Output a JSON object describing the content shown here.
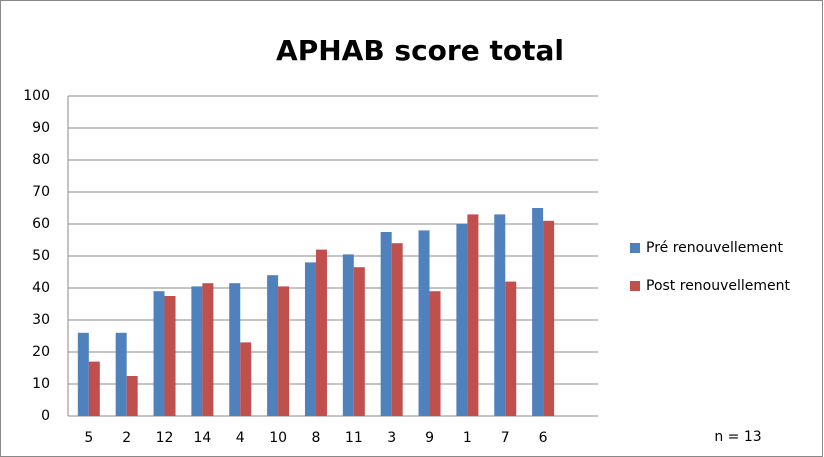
{
  "chart_data": {
    "type": "bar",
    "title": "APHAB score total",
    "categories": [
      "5",
      "2",
      "12",
      "14",
      "4",
      "10",
      "8",
      "11",
      "3",
      "9",
      "1",
      "7",
      "6"
    ],
    "series": [
      {
        "name": "Pré renouvellement",
        "color": "#4f81bd",
        "values": [
          26,
          26,
          39,
          40.5,
          41.5,
          44,
          48,
          50.5,
          57.5,
          58,
          60,
          63,
          65
        ]
      },
      {
        "name": "Post renouvellement",
        "color": "#c0504d",
        "values": [
          17,
          12.5,
          37.5,
          41.5,
          23,
          40.5,
          52,
          46.5,
          54,
          39,
          63,
          42,
          61
        ]
      }
    ],
    "ylim": [
      0,
      100
    ],
    "yticks": [
      0,
      10,
      20,
      30,
      40,
      50,
      60,
      70,
      80,
      90,
      100
    ],
    "grid": true,
    "legend": "right",
    "annotation": "n = 13"
  }
}
